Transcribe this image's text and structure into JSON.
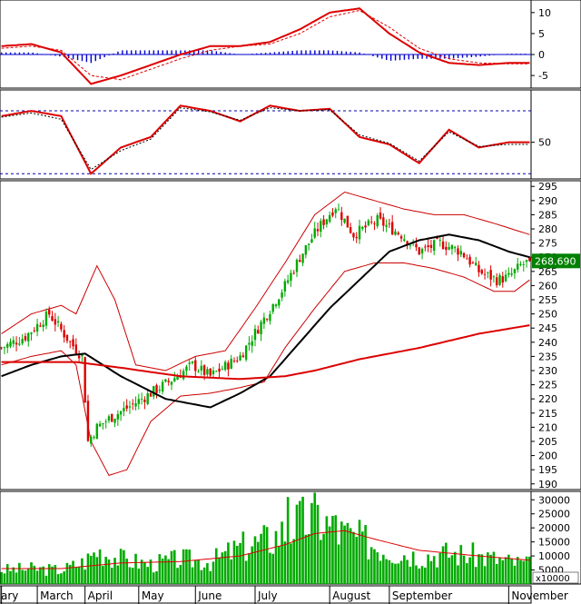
{
  "chart_data": [
    {
      "type": "line",
      "panel": "macd",
      "ylim": [
        -8,
        13
      ],
      "yticks": [
        10,
        5,
        0,
        -5
      ],
      "ytick_labels": [
        "10",
        "5",
        "0",
        "-5"
      ],
      "grid": false,
      "x": [
        0,
        10,
        20,
        30,
        40,
        50,
        60,
        70,
        80,
        90,
        100,
        110,
        120,
        130,
        140,
        150,
        160,
        170
      ],
      "series": [
        {
          "role": "macd",
          "color": "#dd0000",
          "values": [
            2.0,
            2.5,
            0.5,
            -7.0,
            -5.0,
            -2.5,
            0.0,
            2.0,
            2.0,
            3.0,
            6.0,
            10.0,
            11.0,
            5.0,
            0.5,
            -2.0,
            -2.5,
            -2.0
          ]
        },
        {
          "role": "signal",
          "color": "#dd0000",
          "dashed": true,
          "values": [
            1.5,
            2.0,
            1.0,
            -5.0,
            -6.0,
            -3.5,
            -1.0,
            1.0,
            2.0,
            2.5,
            5.0,
            9.0,
            10.5,
            6.5,
            1.5,
            -1.0,
            -2.0,
            -2.2
          ]
        },
        {
          "role": "histogram",
          "type": "bar",
          "color": "#0000cc",
          "values": [
            0.5,
            0.5,
            -0.5,
            -2.0,
            1.0,
            1.0,
            1.0,
            1.0,
            0.0,
            0.5,
            1.0,
            1.0,
            0.5,
            -1.5,
            -1.0,
            -1.0,
            -0.5,
            0.2
          ]
        }
      ]
    },
    {
      "type": "line",
      "panel": "rsi",
      "ylim": [
        15,
        100
      ],
      "yticks": [
        50
      ],
      "ytick_labels": [
        "50"
      ],
      "levels": [
        80,
        20
      ],
      "grid": false,
      "x": [
        0,
        10,
        20,
        30,
        40,
        50,
        60,
        70,
        80,
        90,
        100,
        110,
        120,
        130,
        140,
        150,
        160,
        170
      ],
      "series": [
        {
          "role": "rsi",
          "color": "#dd0000",
          "values": [
            75,
            80,
            75,
            20,
            45,
            55,
            85,
            80,
            70,
            85,
            80,
            82,
            55,
            48,
            30,
            62,
            45,
            50
          ]
        },
        {
          "role": "rsi-signal",
          "color": "#000000",
          "dashed": true,
          "values": [
            74,
            78,
            72,
            24,
            42,
            53,
            83,
            79,
            71,
            83,
            80,
            81,
            57,
            49,
            32,
            60,
            46,
            48
          ]
        }
      ]
    },
    {
      "type": "candlestick",
      "panel": "price",
      "ylim": [
        188,
        297
      ],
      "yticks": [
        190,
        195,
        200,
        205,
        210,
        215,
        220,
        225,
        230,
        235,
        240,
        245,
        250,
        255,
        260,
        265,
        270,
        275,
        280,
        285,
        290,
        295
      ],
      "ytick_labels": [
        "190",
        "195",
        "200",
        "205",
        "210",
        "215",
        "220",
        "225",
        "230",
        "235",
        "240",
        "245",
        "250",
        "255",
        "260",
        "265",
        "270",
        "275",
        "280",
        "285",
        "290",
        "295"
      ],
      "last_price_label": "268.690",
      "last_price": 268.69,
      "up_color": "#00aa00",
      "down_color": "#dd0000",
      "xlim": [
        0,
        177
      ],
      "x_labels": [
        "ary",
        "March",
        "April",
        "May",
        "June",
        "July",
        "August",
        "September",
        "November"
      ],
      "x_label_positions": [
        0,
        12,
        28,
        46,
        65,
        85,
        110,
        130,
        170
      ],
      "close_keyframes": [
        [
          0,
          238
        ],
        [
          8,
          242
        ],
        [
          16,
          250
        ],
        [
          23,
          240
        ],
        [
          27,
          235
        ],
        [
          29,
          205
        ],
        [
          32,
          210
        ],
        [
          36,
          213
        ],
        [
          44,
          218
        ],
        [
          50,
          222
        ],
        [
          56,
          226
        ],
        [
          64,
          232
        ],
        [
          70,
          228
        ],
        [
          80,
          235
        ],
        [
          86,
          245
        ],
        [
          95,
          260
        ],
        [
          100,
          270
        ],
        [
          106,
          280
        ],
        [
          112,
          288
        ],
        [
          118,
          278
        ],
        [
          126,
          283
        ],
        [
          134,
          278
        ],
        [
          140,
          272
        ],
        [
          147,
          275
        ],
        [
          154,
          272
        ],
        [
          160,
          265
        ],
        [
          166,
          262
        ],
        [
          170,
          263
        ],
        [
          174,
          267
        ],
        [
          177,
          268.69
        ]
      ],
      "moving_averages": [
        {
          "name": "MA50",
          "color": "#000000",
          "points": [
            [
              0,
              228
            ],
            [
              10,
              232
            ],
            [
              20,
              235
            ],
            [
              28,
              236
            ],
            [
              40,
              228
            ],
            [
              55,
              220
            ],
            [
              70,
              217
            ],
            [
              80,
              222
            ],
            [
              90,
              228
            ],
            [
              100,
              240
            ],
            [
              110,
              252
            ],
            [
              120,
              262
            ],
            [
              130,
              272
            ],
            [
              140,
              276
            ],
            [
              150,
              278
            ],
            [
              160,
              276
            ],
            [
              170,
              272
            ],
            [
              177,
              270
            ]
          ]
        },
        {
          "name": "MA200",
          "color": "#dd0000",
          "points": [
            [
              0,
              233
            ],
            [
              10,
              233
            ],
            [
              25,
              233
            ],
            [
              40,
              231
            ],
            [
              60,
              228
            ],
            [
              80,
              227
            ],
            [
              95,
              228
            ],
            [
              105,
              230
            ],
            [
              120,
              234
            ],
            [
              140,
              238
            ],
            [
              160,
              243
            ],
            [
              177,
              246
            ]
          ]
        }
      ],
      "bollinger_upper": [
        [
          0,
          243
        ],
        [
          10,
          250
        ],
        [
          20,
          253
        ],
        [
          25,
          250
        ],
        [
          32,
          267
        ],
        [
          38,
          255
        ],
        [
          45,
          232
        ],
        [
          55,
          230
        ],
        [
          65,
          235
        ],
        [
          75,
          237
        ],
        [
          85,
          252
        ],
        [
          95,
          268
        ],
        [
          105,
          285
        ],
        [
          115,
          293
        ],
        [
          125,
          290
        ],
        [
          135,
          287
        ],
        [
          145,
          285
        ],
        [
          155,
          285
        ],
        [
          165,
          282
        ],
        [
          177,
          278
        ]
      ],
      "bollinger_lower": [
        [
          0,
          232
        ],
        [
          10,
          235
        ],
        [
          20,
          237
        ],
        [
          25,
          232
        ],
        [
          30,
          205
        ],
        [
          36,
          193
        ],
        [
          42,
          195
        ],
        [
          50,
          212
        ],
        [
          60,
          221
        ],
        [
          70,
          222
        ],
        [
          80,
          224
        ],
        [
          88,
          226
        ],
        [
          95,
          238
        ],
        [
          105,
          252
        ],
        [
          115,
          265
        ],
        [
          125,
          268
        ],
        [
          135,
          268
        ],
        [
          145,
          266
        ],
        [
          155,
          263
        ],
        [
          165,
          258
        ],
        [
          172,
          258
        ],
        [
          177,
          262
        ]
      ]
    },
    {
      "type": "bar",
      "panel": "volume",
      "ylim": [
        0,
        33000
      ],
      "yticks": [
        5000,
        10000,
        15000,
        20000,
        25000,
        30000
      ],
      "ytick_labels": [
        "5000",
        "10000",
        "15000",
        "20000",
        "25000",
        "30000"
      ],
      "unit_label": "x10000",
      "color": "#00aa00",
      "volume_keyframes": [
        [
          0,
          5000
        ],
        [
          10,
          5500
        ],
        [
          20,
          5000
        ],
        [
          28,
          8000
        ],
        [
          32,
          12000
        ],
        [
          40,
          9000
        ],
        [
          50,
          7000
        ],
        [
          60,
          9000
        ],
        [
          70,
          8000
        ],
        [
          80,
          13000
        ],
        [
          90,
          16000
        ],
        [
          100,
          22000
        ],
        [
          106,
          24000
        ],
        [
          112,
          19000
        ],
        [
          120,
          16000
        ],
        [
          130,
          12000
        ],
        [
          140,
          10000
        ],
        [
          150,
          11000
        ],
        [
          160,
          10000
        ],
        [
          170,
          8000
        ],
        [
          177,
          7000
        ]
      ],
      "volume_ma": {
        "color": "#dd0000",
        "points": [
          [
            0,
            5500
          ],
          [
            20,
            5500
          ],
          [
            40,
            7500
          ],
          [
            60,
            8000
          ],
          [
            80,
            10000
          ],
          [
            95,
            14000
          ],
          [
            105,
            18000
          ],
          [
            115,
            19000
          ],
          [
            125,
            16000
          ],
          [
            140,
            12000
          ],
          [
            160,
            10000
          ],
          [
            177,
            8500
          ]
        ]
      }
    }
  ]
}
